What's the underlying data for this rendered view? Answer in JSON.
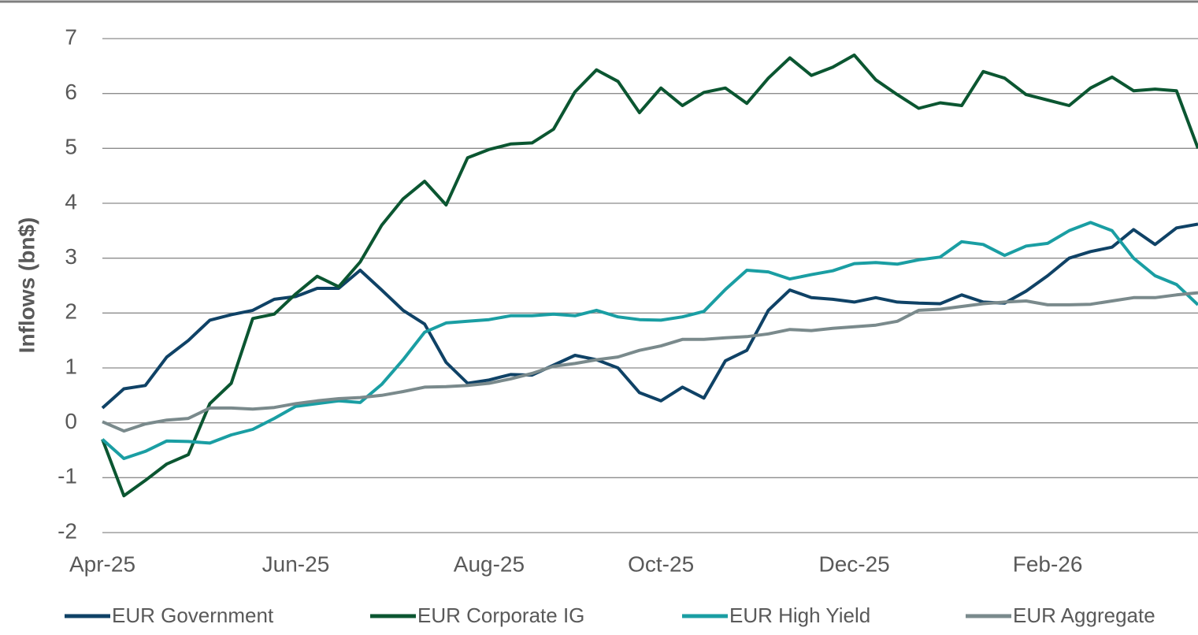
{
  "chart_data": {
    "type": "line",
    "y_label": "Inflows (bn$)",
    "categories": [
      "Apr-25",
      null,
      null,
      null,
      null,
      null,
      null,
      null,
      null,
      "Jun-25",
      null,
      null,
      null,
      null,
      null,
      null,
      null,
      null,
      "Aug-25",
      null,
      null,
      null,
      null,
      null,
      null,
      null,
      "Oct-25",
      null,
      null,
      null,
      null,
      null,
      null,
      null,
      null,
      "Dec-25",
      null,
      null,
      null,
      null,
      null,
      null,
      null,
      null,
      "Feb-26",
      null,
      null,
      null,
      null,
      null,
      null,
      null
    ],
    "series": [
      {
        "name": "EUR Government",
        "color": "#0f4266",
        "values": [
          0.27,
          0.62,
          0.68,
          1.2,
          1.5,
          1.87,
          1.97,
          2.05,
          2.25,
          2.3,
          2.45,
          2.45,
          2.78,
          2.42,
          2.05,
          1.8,
          1.1,
          0.72,
          0.78,
          0.88,
          0.87,
          1.05,
          1.23,
          1.15,
          1.0,
          0.55,
          0.4,
          0.65,
          0.45,
          1.13,
          1.32,
          2.05,
          2.42,
          2.28,
          2.25,
          2.2,
          2.28,
          2.2,
          2.18,
          2.17,
          2.33,
          2.2,
          2.18,
          2.4,
          2.68,
          3.0,
          3.12,
          3.2,
          3.52,
          3.25,
          3.55,
          3.62
        ]
      },
      {
        "name": "EUR Corporate IG",
        "color": "#0b5631",
        "values": [
          -0.3,
          -1.33,
          -1.05,
          -0.75,
          -0.58,
          0.35,
          0.72,
          1.9,
          1.98,
          2.35,
          2.67,
          2.48,
          2.93,
          3.6,
          4.08,
          4.4,
          3.97,
          4.83,
          4.98,
          5.08,
          5.1,
          5.35,
          6.03,
          6.43,
          6.22,
          5.65,
          6.1,
          5.78,
          6.02,
          6.1,
          5.82,
          6.28,
          6.65,
          6.33,
          6.48,
          6.7,
          6.25,
          5.98,
          5.73,
          5.83,
          5.78,
          6.4,
          6.28,
          5.98,
          5.88,
          5.78,
          6.1,
          6.3,
          6.05,
          6.08,
          6.05,
          5.0
        ]
      },
      {
        "name": "EUR High Yield",
        "color": "#1a9ea3",
        "values": [
          -0.3,
          -0.65,
          -0.52,
          -0.33,
          -0.34,
          -0.37,
          -0.22,
          -0.12,
          0.08,
          0.3,
          0.35,
          0.4,
          0.37,
          0.7,
          1.15,
          1.65,
          1.82,
          1.85,
          1.88,
          1.95,
          1.95,
          1.98,
          1.95,
          2.05,
          1.93,
          1.88,
          1.87,
          1.93,
          2.03,
          2.43,
          2.78,
          2.75,
          2.62,
          2.7,
          2.77,
          2.9,
          2.92,
          2.89,
          2.97,
          3.02,
          3.3,
          3.25,
          3.05,
          3.22,
          3.27,
          3.5,
          3.65,
          3.5,
          3.0,
          2.68,
          2.52,
          2.15
        ]
      },
      {
        "name": "EUR Aggregate",
        "color": "#7a8a8c",
        "values": [
          0.02,
          -0.15,
          -0.02,
          0.05,
          0.08,
          0.27,
          0.27,
          0.25,
          0.28,
          0.35,
          0.4,
          0.44,
          0.46,
          0.5,
          0.57,
          0.65,
          0.66,
          0.68,
          0.72,
          0.8,
          0.9,
          1.03,
          1.08,
          1.15,
          1.2,
          1.32,
          1.4,
          1.52,
          1.52,
          1.55,
          1.57,
          1.62,
          1.7,
          1.68,
          1.72,
          1.75,
          1.78,
          1.85,
          2.05,
          2.07,
          2.12,
          2.17,
          2.2,
          2.22,
          2.15,
          2.15,
          2.16,
          2.22,
          2.28,
          2.28,
          2.33,
          2.37
        ]
      }
    ],
    "ylim": [
      -2,
      7
    ],
    "yticks": [
      -2,
      -1,
      0,
      1,
      2,
      3,
      4,
      5,
      6,
      7
    ],
    "grid": true,
    "legend": "bottom"
  }
}
